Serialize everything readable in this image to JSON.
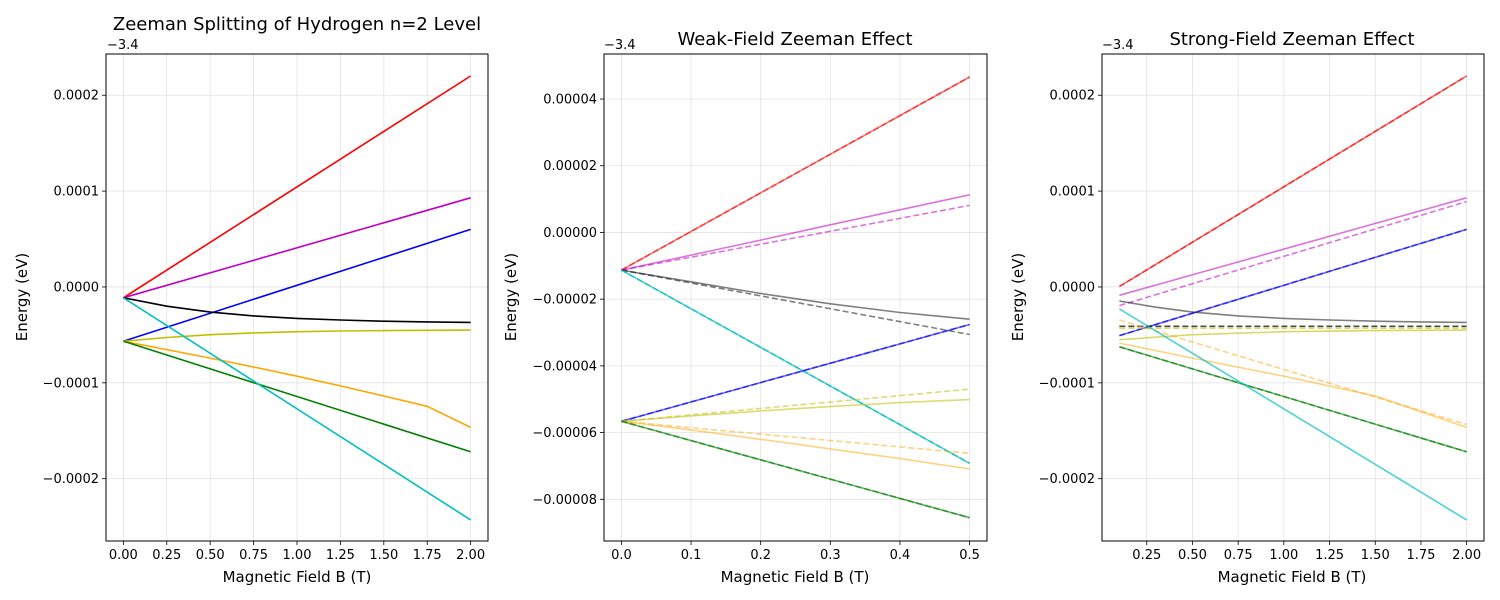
{
  "chart_data": [
    {
      "type": "line",
      "title": "Zeeman Splitting of Hydrogen n=2 Level",
      "xlabel": "Magnetic Field B (T)",
      "ylabel": "Energy (eV)",
      "offset_label": "−3.4",
      "offset_value": -3.4,
      "xlim": [
        -0.1,
        2.1
      ],
      "ylim": [
        -0.000265,
        0.000243
      ],
      "grid": true,
      "xticks": [
        0,
        0.25,
        0.5,
        0.75,
        1.0,
        1.25,
        1.5,
        1.75,
        2.0
      ],
      "xtick_labels": [
        "0.00",
        "0.25",
        "0.50",
        "0.75",
        "1.00",
        "1.25",
        "1.50",
        "1.75",
        "2.00"
      ],
      "yticks": [
        -0.0002,
        -0.0001,
        0,
        0.0001,
        0.0002
      ],
      "ytick_labels": [
        "−0.0002",
        "−0.0001",
        "0.0000",
        "0.0001",
        "0.0002"
      ],
      "series": [
        {
          "name": "red",
          "color": "#ff0000",
          "opacity": 1,
          "dashed": false,
          "x": [
            0,
            2
          ],
          "y": [
            -1.13e-05,
            0.00022
          ]
        },
        {
          "name": "magenta",
          "color": "#bf00bf",
          "opacity": 1,
          "dashed": false,
          "x": [
            0,
            2
          ],
          "y": [
            -1.13e-05,
            9.3e-05
          ]
        },
        {
          "name": "blue",
          "color": "#0000ff",
          "opacity": 1,
          "dashed": false,
          "x": [
            0,
            2
          ],
          "y": [
            -5.66e-05,
            6e-05
          ]
        },
        {
          "name": "black",
          "color": "#000000",
          "opacity": 1,
          "dashed": false,
          "x": [
            0,
            0.25,
            0.5,
            0.75,
            1.0,
            1.25,
            1.5,
            1.75,
            2.0
          ],
          "y": [
            -1.13e-05,
            -2.01e-05,
            -2.62e-05,
            -3.02e-05,
            -3.28e-05,
            -3.45e-05,
            -3.57e-05,
            -3.65e-05,
            -3.7e-05
          ]
        },
        {
          "name": "olive",
          "color": "#bfbf00",
          "opacity": 1,
          "dashed": false,
          "x": [
            0,
            0.25,
            0.5,
            0.75,
            1.0,
            1.25,
            1.5,
            1.75,
            2.0
          ],
          "y": [
            -5.66e-05,
            -5.27e-05,
            -4.98e-05,
            -4.79e-05,
            -4.67e-05,
            -4.59e-05,
            -4.55e-05,
            -4.52e-05,
            -4.5e-05
          ]
        },
        {
          "name": "orange",
          "color": "#ffa500",
          "opacity": 1,
          "dashed": false,
          "x": [
            0,
            0.25,
            0.5,
            0.75,
            1.0,
            1.25,
            1.5,
            1.75,
            2.0
          ],
          "y": [
            -5.66e-05,
            -6.53e-05,
            -7.42e-05,
            -8.35e-05,
            -9.31e-05,
            -0.0001032,
            -0.0001137,
            -0.0001245,
            -0.0001465
          ]
        },
        {
          "name": "green",
          "color": "#008000",
          "opacity": 1,
          "dashed": false,
          "x": [
            0,
            2
          ],
          "y": [
            -5.66e-05,
            -0.000172
          ]
        },
        {
          "name": "cyan",
          "color": "#00bfbf",
          "opacity": 1,
          "dashed": false,
          "x": [
            0,
            2
          ],
          "y": [
            -1.13e-05,
            -0.000243
          ]
        }
      ]
    },
    {
      "type": "line",
      "title": "Weak-Field Zeeman Effect",
      "xlabel": "Magnetic Field B (T)",
      "ylabel": "Energy (eV)",
      "offset_label": "−3.4",
      "offset_value": -3.4,
      "xlim": [
        -0.025,
        0.525
      ],
      "ylim": [
        -9.25e-05,
        5.35e-05
      ],
      "grid": true,
      "xticks": [
        0,
        0.1,
        0.2,
        0.3,
        0.4,
        0.5
      ],
      "xtick_labels": [
        "0.0",
        "0.1",
        "0.2",
        "0.3",
        "0.4",
        "0.5"
      ],
      "yticks": [
        -8e-05,
        -6e-05,
        -4e-05,
        -2e-05,
        0,
        2e-05,
        4e-05
      ],
      "ytick_labels": [
        "−0.00008",
        "−0.00006",
        "−0.00004",
        "−0.00002",
        "0.00000",
        "0.00002",
        "0.00004"
      ],
      "series": [
        {
          "name": "red exact",
          "color": "#ff0000",
          "opacity": 0.55,
          "dashed": false,
          "x": [
            0,
            0.5
          ],
          "y": [
            -1.13e-05,
            4.66e-05
          ]
        },
        {
          "name": "red linear",
          "color": "#ff0000",
          "opacity": 0.55,
          "dashed": true,
          "x": [
            0,
            0.5
          ],
          "y": [
            -1.13e-05,
            4.66e-05
          ]
        },
        {
          "name": "magenta exact",
          "color": "#bf00bf",
          "opacity": 0.55,
          "dashed": false,
          "x": [
            0,
            0.1,
            0.2,
            0.3,
            0.4,
            0.5
          ],
          "y": [
            -1.13e-05,
            -6.8e-06,
            -2.3e-06,
            2.3e-06,
            6.8e-06,
            1.13e-05
          ]
        },
        {
          "name": "magenta linear",
          "color": "#bf00bf",
          "opacity": 0.55,
          "dashed": true,
          "x": [
            0,
            0.5
          ],
          "y": [
            -1.13e-05,
            8.1e-06
          ]
        },
        {
          "name": "gray exact",
          "color": "#000000",
          "opacity": 0.5,
          "dashed": false,
          "x": [
            0,
            0.1,
            0.2,
            0.3,
            0.4,
            0.5
          ],
          "y": [
            -1.13e-05,
            -1.48e-05,
            -1.83e-05,
            -2.14e-05,
            -2.4e-05,
            -2.6e-05
          ]
        },
        {
          "name": "gray linear",
          "color": "#000000",
          "opacity": 0.5,
          "dashed": true,
          "x": [
            0,
            0.5
          ],
          "y": [
            -1.13e-05,
            -3.06e-05
          ]
        },
        {
          "name": "cyan exact",
          "color": "#00bfbf",
          "opacity": 0.7,
          "dashed": false,
          "x": [
            0,
            0.5
          ],
          "y": [
            -1.13e-05,
            -6.92e-05
          ]
        },
        {
          "name": "cyan linear",
          "color": "#00bfbf",
          "opacity": 0.7,
          "dashed": true,
          "x": [
            0,
            0.5
          ],
          "y": [
            -1.13e-05,
            -6.92e-05
          ]
        },
        {
          "name": "blue exact",
          "color": "#0000ff",
          "opacity": 0.6,
          "dashed": false,
          "x": [
            0,
            0.5
          ],
          "y": [
            -5.66e-05,
            -2.76e-05
          ]
        },
        {
          "name": "blue linear",
          "color": "#0000ff",
          "opacity": 0.6,
          "dashed": true,
          "x": [
            0,
            0.5
          ],
          "y": [
            -5.66e-05,
            -2.76e-05
          ]
        },
        {
          "name": "olive exact",
          "color": "#bfbf00",
          "opacity": 0.55,
          "dashed": false,
          "x": [
            0,
            0.1,
            0.2,
            0.3,
            0.4,
            0.5
          ],
          "y": [
            -5.66e-05,
            -5.5e-05,
            -5.35e-05,
            -5.22e-05,
            -5.1e-05,
            -5.01e-05
          ]
        },
        {
          "name": "olive linear",
          "color": "#bfbf00",
          "opacity": 0.55,
          "dashed": true,
          "x": [
            0,
            0.5
          ],
          "y": [
            -5.66e-05,
            -4.7e-05
          ]
        },
        {
          "name": "orange exact",
          "color": "#ffa500",
          "opacity": 0.5,
          "dashed": false,
          "x": [
            0,
            0.1,
            0.2,
            0.3,
            0.4,
            0.5
          ],
          "y": [
            -5.66e-05,
            -5.92e-05,
            -6.2e-05,
            -6.49e-05,
            -6.78e-05,
            -7.09e-05
          ]
        },
        {
          "name": "orange linear",
          "color": "#ffa500",
          "opacity": 0.5,
          "dashed": true,
          "x": [
            0,
            0.5
          ],
          "y": [
            -5.66e-05,
            -6.62e-05
          ]
        },
        {
          "name": "green exact",
          "color": "#008000",
          "opacity": 0.6,
          "dashed": false,
          "x": [
            0,
            0.5
          ],
          "y": [
            -5.66e-05,
            -8.55e-05
          ]
        },
        {
          "name": "green linear",
          "color": "#008000",
          "opacity": 0.6,
          "dashed": true,
          "x": [
            0,
            0.5
          ],
          "y": [
            -5.66e-05,
            -8.55e-05
          ]
        }
      ]
    },
    {
      "type": "line",
      "title": "Strong-Field Zeeman Effect",
      "xlabel": "Magnetic Field B (T)",
      "ylabel": "Energy (eV)",
      "offset_label": "−3.4",
      "offset_value": -3.4,
      "xlim": [
        0.005,
        2.095
      ],
      "ylim": [
        -0.000265,
        0.000243
      ],
      "grid": true,
      "xticks": [
        0.25,
        0.5,
        0.75,
        1.0,
        1.25,
        1.5,
        1.75,
        2.0
      ],
      "xtick_labels": [
        "0.25",
        "0.50",
        "0.75",
        "1.00",
        "1.25",
        "1.50",
        "1.75",
        "2.00"
      ],
      "yticks": [
        -0.0002,
        -0.0001,
        0,
        0.0001,
        0.0002
      ],
      "ytick_labels": [
        "−0.0002",
        "−0.0001",
        "0.0000",
        "0.0001",
        "0.0002"
      ],
      "series": [
        {
          "name": "red exact",
          "color": "#ff0000",
          "opacity": 0.6,
          "dashed": false,
          "x": [
            0.1,
            2.0
          ],
          "y": [
            5e-07,
            0.00022
          ]
        },
        {
          "name": "red approx",
          "color": "#ff0000",
          "opacity": 0.6,
          "dashed": true,
          "x": [
            0.1,
            2.0
          ],
          "y": [
            5e-07,
            0.00022
          ]
        },
        {
          "name": "magenta exact",
          "color": "#bf00bf",
          "opacity": 0.55,
          "dashed": false,
          "x": [
            0.1,
            2.0
          ],
          "y": [
            -8.7e-06,
            9.3e-05
          ]
        },
        {
          "name": "magenta approx",
          "color": "#bf00bf",
          "opacity": 0.55,
          "dashed": true,
          "x": [
            0.1,
            2.0
          ],
          "y": [
            -1.95e-05,
            8.9e-05
          ]
        },
        {
          "name": "blue exact",
          "color": "#0000ff",
          "opacity": 0.6,
          "dashed": false,
          "x": [
            0.1,
            2.0
          ],
          "y": [
            -5.07e-05,
            6e-05
          ]
        },
        {
          "name": "blue approx",
          "color": "#0000ff",
          "opacity": 0.6,
          "dashed": true,
          "x": [
            0.1,
            2.0
          ],
          "y": [
            -5.07e-05,
            6e-05
          ]
        },
        {
          "name": "gray exact",
          "color": "#000000",
          "opacity": 0.5,
          "dashed": false,
          "x": [
            0.1,
            0.3,
            0.5,
            0.75,
            1.0,
            1.25,
            1.5,
            1.75,
            2.0
          ],
          "y": [
            -1.48e-05,
            -2.11e-05,
            -2.62e-05,
            -3.02e-05,
            -3.28e-05,
            -3.45e-05,
            -3.57e-05,
            -3.65e-05,
            -3.7e-05
          ]
        },
        {
          "name": "black dashed",
          "color": "#000000",
          "opacity": 0.7,
          "dashed": true,
          "x": [
            0.1,
            2.0
          ],
          "y": [
            -4.1e-05,
            -4.1e-05
          ]
        },
        {
          "name": "olive exact",
          "color": "#bfbf00",
          "opacity": 0.6,
          "dashed": false,
          "x": [
            0.1,
            0.5,
            1.0,
            1.5,
            2.0
          ],
          "y": [
            -5.5e-05,
            -4.98e-05,
            -4.67e-05,
            -4.55e-05,
            -4.5e-05
          ]
        },
        {
          "name": "olive approx",
          "color": "#bfbf00",
          "opacity": 0.6,
          "dashed": true,
          "x": [
            0.1,
            2.0
          ],
          "y": [
            -4.3e-05,
            -4.3e-05
          ]
        },
        {
          "name": "orange exact",
          "color": "#ffa500",
          "opacity": 0.5,
          "dashed": false,
          "x": [
            0.1,
            0.5,
            1.0,
            1.5,
            2.0
          ],
          "y": [
            -5.86e-05,
            -7.42e-05,
            -9.31e-05,
            -0.0001137,
            -0.0001465
          ]
        },
        {
          "name": "orange approx",
          "color": "#ffa500",
          "opacity": 0.5,
          "dashed": true,
          "x": [
            0.1,
            2.0
          ],
          "y": [
            -3.45e-05,
            -0.0001435
          ]
        },
        {
          "name": "green exact",
          "color": "#008000",
          "opacity": 0.6,
          "dashed": false,
          "x": [
            0.1,
            2.0
          ],
          "y": [
            -6.24e-05,
            -0.000172
          ]
        },
        {
          "name": "green approx",
          "color": "#008000",
          "opacity": 0.6,
          "dashed": true,
          "x": [
            0.1,
            2.0
          ],
          "y": [
            -6.24e-05,
            -0.000172
          ]
        },
        {
          "name": "cyan exact",
          "color": "#00bfbf",
          "opacity": 0.7,
          "dashed": false,
          "x": [
            0.1,
            2.0
          ],
          "y": [
            -2.29e-05,
            -0.000243
          ]
        }
      ]
    }
  ]
}
